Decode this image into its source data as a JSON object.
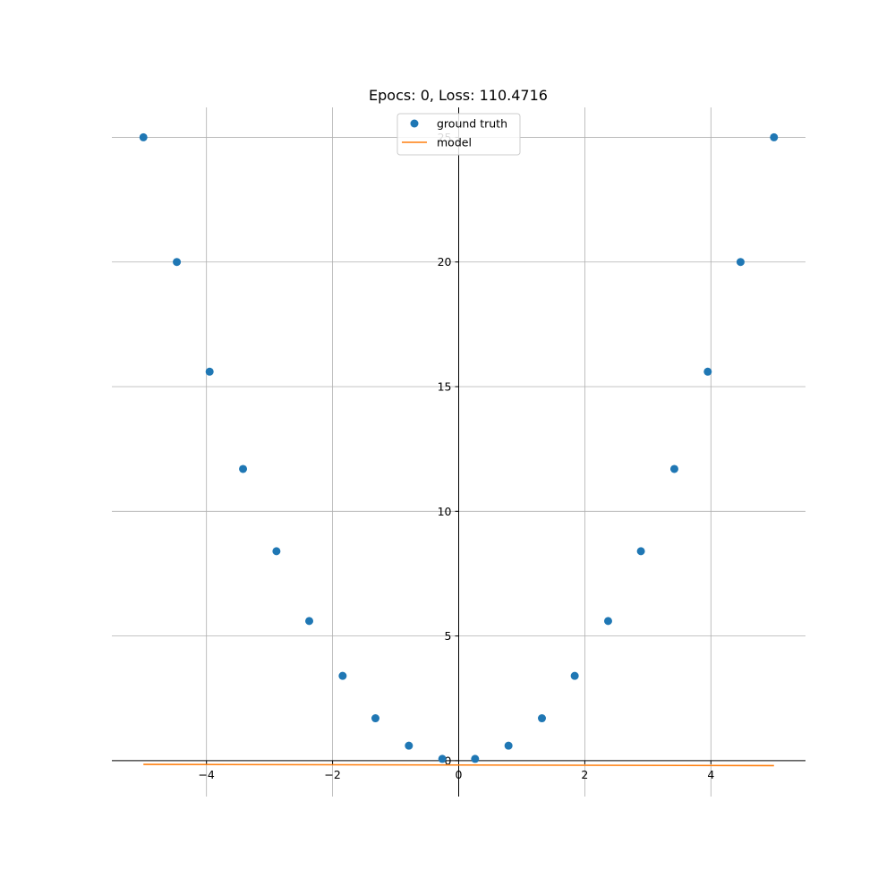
{
  "chart_data": {
    "type": "scatter",
    "title": "Epocs: 0, Loss: 110.4716",
    "xlabel": "",
    "ylabel": "",
    "xlim": [
      -5.5,
      5.5
    ],
    "ylim": [
      -1.44,
      26.2
    ],
    "grid": true,
    "legend_position": "top-center",
    "x_ticks": [
      -4,
      -2,
      0,
      2,
      4
    ],
    "x_tick_labels": [
      "−4",
      "−2",
      "0",
      "2",
      "4"
    ],
    "y_ticks": [
      0,
      5,
      10,
      15,
      20,
      25
    ],
    "y_tick_labels": [
      "0",
      "5",
      "10",
      "15",
      "20",
      "25"
    ],
    "series": [
      {
        "name": "ground truth",
        "kind": "scatter",
        "color": "#1f77b4",
        "points": [
          [
            -5.0,
            25.0
          ],
          [
            -4.47,
            20.0
          ],
          [
            -3.95,
            15.6
          ],
          [
            -3.42,
            11.7
          ],
          [
            -2.89,
            8.4
          ],
          [
            -2.37,
            5.6
          ],
          [
            -1.84,
            3.4
          ],
          [
            -1.32,
            1.7
          ],
          [
            -0.79,
            0.6
          ],
          [
            -0.26,
            0.07
          ],
          [
            0.26,
            0.07
          ],
          [
            0.79,
            0.6
          ],
          [
            1.32,
            1.7
          ],
          [
            1.84,
            3.4
          ],
          [
            2.37,
            5.6
          ],
          [
            2.89,
            8.4
          ],
          [
            3.42,
            11.7
          ],
          [
            3.95,
            15.6
          ],
          [
            4.47,
            20.0
          ],
          [
            5.0,
            25.0
          ]
        ]
      },
      {
        "name": "model",
        "kind": "line",
        "color": "#ff7f0e",
        "points": [
          [
            -5.0,
            -0.15
          ],
          [
            5.0,
            -0.2
          ]
        ]
      }
    ]
  }
}
